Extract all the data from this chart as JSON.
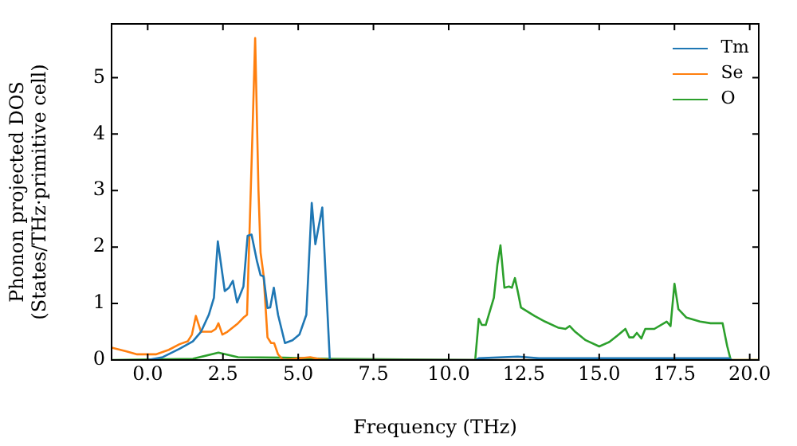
{
  "chart_data": {
    "type": "line",
    "xlabel": "Frequency (THz)",
    "ylabel": "Phonon projected DOS\n(States/THz·primitive cell)",
    "xlim": [
      -1.2,
      20.3
    ],
    "ylim": [
      0,
      5.95
    ],
    "xticks": [
      {
        "value": 0,
        "label": "0.0"
      },
      {
        "value": 2.5,
        "label": "2.5"
      },
      {
        "value": 5,
        "label": "5.0"
      },
      {
        "value": 7.5,
        "label": "7.5"
      },
      {
        "value": 10,
        "label": "10.0"
      },
      {
        "value": 12.5,
        "label": "12.5"
      },
      {
        "value": 15,
        "label": "15.0"
      },
      {
        "value": 17.5,
        "label": "17.5"
      },
      {
        "value": 20,
        "label": "20.0"
      }
    ],
    "yticks": [
      0,
      1,
      2,
      3,
      4,
      5
    ],
    "grid": false,
    "legend": "top right",
    "marker": "none",
    "line_style": "solid",
    "series": [
      {
        "name": "Tm",
        "color": "#1f77b4",
        "x": [
          0,
          0.5,
          1.06,
          1.5,
          1.77,
          2.03,
          2.2,
          2.33,
          2.56,
          2.7,
          2.83,
          2.97,
          3.18,
          3.32,
          3.45,
          3.63,
          3.75,
          3.85,
          3.98,
          4.07,
          4.19,
          4.33,
          4.56,
          4.81,
          5.04,
          5.27,
          5.45,
          5.57,
          5.8,
          6.05,
          10.9,
          11.0,
          12.3,
          13.0,
          19.3,
          19.4
        ],
        "values": [
          0,
          0.05,
          0.2,
          0.33,
          0.5,
          0.8,
          1.1,
          2.1,
          1.22,
          1.28,
          1.4,
          1.02,
          1.3,
          2.2,
          2.22,
          1.75,
          1.5,
          1.48,
          0.92,
          0.93,
          1.28,
          0.8,
          0.3,
          0.35,
          0.45,
          0.8,
          2.78,
          2.05,
          2.7,
          0,
          0,
          0.03,
          0.06,
          0.03,
          0.03,
          0
        ]
      },
      {
        "name": "Se",
        "color": "#ff7f0e",
        "x": [
          -1.2,
          -0.7,
          -0.35,
          0.27,
          0.7,
          1.06,
          1.33,
          1.47,
          1.6,
          1.77,
          2.12,
          2.26,
          2.35,
          2.48,
          2.65,
          3.0,
          3.18,
          3.3,
          3.48,
          3.57,
          3.68,
          3.75,
          3.85,
          3.98,
          4.1,
          4.2,
          4.33,
          4.5,
          5.4,
          5.66,
          6.0,
          20.3
        ],
        "values": [
          0.22,
          0.15,
          0.1,
          0.1,
          0.18,
          0.28,
          0.33,
          0.45,
          0.78,
          0.5,
          0.5,
          0.55,
          0.65,
          0.45,
          0.5,
          0.65,
          0.75,
          0.8,
          4.0,
          5.7,
          3.0,
          1.9,
          1.5,
          0.4,
          0.3,
          0.3,
          0.1,
          0,
          0.05,
          0.02,
          0,
          0
        ]
      },
      {
        "name": "O",
        "color": "#2ca02c",
        "x": [
          -1.2,
          1.5,
          2.35,
          3.0,
          4.5,
          6.0,
          10.88,
          11.0,
          11.1,
          11.23,
          11.5,
          11.62,
          11.72,
          11.85,
          12.0,
          12.1,
          12.2,
          12.3,
          12.4,
          12.85,
          13.2,
          13.65,
          13.88,
          14.02,
          14.2,
          14.55,
          15.0,
          15.34,
          15.6,
          15.87,
          16.0,
          16.13,
          16.25,
          16.4,
          16.53,
          16.83,
          17.24,
          17.37,
          17.5,
          17.63,
          17.9,
          18.35,
          18.7,
          19.1,
          19.25,
          19.37,
          20.3
        ],
        "values": [
          0,
          0.02,
          0.13,
          0.05,
          0.04,
          0.02,
          0,
          0.73,
          0.62,
          0.62,
          1.1,
          1.7,
          2.03,
          1.28,
          1.3,
          1.28,
          1.45,
          1.2,
          0.93,
          0.78,
          0.68,
          0.57,
          0.55,
          0.6,
          0.5,
          0.35,
          0.24,
          0.32,
          0.43,
          0.55,
          0.4,
          0.4,
          0.48,
          0.38,
          0.55,
          0.55,
          0.68,
          0.6,
          1.35,
          0.9,
          0.75,
          0.68,
          0.65,
          0.65,
          0.25,
          0,
          0
        ]
      }
    ]
  }
}
